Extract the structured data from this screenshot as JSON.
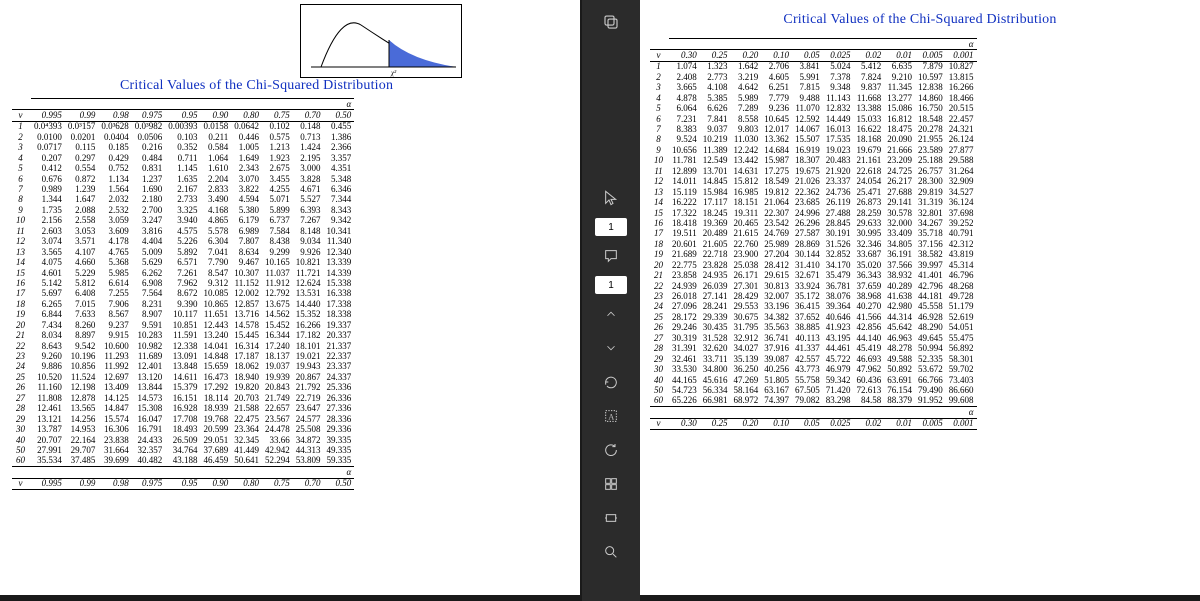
{
  "title": "Critical Values of the Chi-Squared Distribution",
  "alpha_symbol": "α",
  "v_symbol": "v",
  "left": {
    "headers": [
      "0.995",
      "0.99",
      "0.98",
      "0.975",
      "0.95",
      "0.90",
      "0.80",
      "0.75",
      "0.70",
      "0.50"
    ],
    "rows": [
      {
        "v": "1",
        "c": [
          "0.0⁴393",
          "0.0³157",
          "0.0³628",
          "0.0³982",
          "0.00393",
          "0.0158",
          "0.0642",
          "0.102",
          "0.148",
          "0.455"
        ]
      },
      {
        "v": "2",
        "c": [
          "0.0100",
          "0.0201",
          "0.0404",
          "0.0506",
          "0.103",
          "0.211",
          "0.446",
          "0.575",
          "0.713",
          "1.386"
        ]
      },
      {
        "v": "3",
        "c": [
          "0.0717",
          "0.115",
          "0.185",
          "0.216",
          "0.352",
          "0.584",
          "1.005",
          "1.213",
          "1.424",
          "2.366"
        ]
      },
      {
        "v": "4",
        "c": [
          "0.207",
          "0.297",
          "0.429",
          "0.484",
          "0.711",
          "1.064",
          "1.649",
          "1.923",
          "2.195",
          "3.357"
        ]
      },
      {
        "v": "5",
        "c": [
          "0.412",
          "0.554",
          "0.752",
          "0.831",
          "1.145",
          "1.610",
          "2.343",
          "2.675",
          "3.000",
          "4.351"
        ]
      },
      {
        "v": "6",
        "c": [
          "0.676",
          "0.872",
          "1.134",
          "1.237",
          "1.635",
          "2.204",
          "3.070",
          "3.455",
          "3.828",
          "5.348"
        ]
      },
      {
        "v": "7",
        "c": [
          "0.989",
          "1.239",
          "1.564",
          "1.690",
          "2.167",
          "2.833",
          "3.822",
          "4.255",
          "4.671",
          "6.346"
        ]
      },
      {
        "v": "8",
        "c": [
          "1.344",
          "1.647",
          "2.032",
          "2.180",
          "2.733",
          "3.490",
          "4.594",
          "5.071",
          "5.527",
          "7.344"
        ]
      },
      {
        "v": "9",
        "c": [
          "1.735",
          "2.088",
          "2.532",
          "2.700",
          "3.325",
          "4.168",
          "5.380",
          "5.899",
          "6.393",
          "8.343"
        ]
      },
      {
        "v": "10",
        "c": [
          "2.156",
          "2.558",
          "3.059",
          "3.247",
          "3.940",
          "4.865",
          "6.179",
          "6.737",
          "7.267",
          "9.342"
        ]
      },
      {
        "v": "11",
        "c": [
          "2.603",
          "3.053",
          "3.609",
          "3.816",
          "4.575",
          "5.578",
          "6.989",
          "7.584",
          "8.148",
          "10.341"
        ]
      },
      {
        "v": "12",
        "c": [
          "3.074",
          "3.571",
          "4.178",
          "4.404",
          "5.226",
          "6.304",
          "7.807",
          "8.438",
          "9.034",
          "11.340"
        ]
      },
      {
        "v": "13",
        "c": [
          "3.565",
          "4.107",
          "4.765",
          "5.009",
          "5.892",
          "7.041",
          "8.634",
          "9.299",
          "9.926",
          "12.340"
        ]
      },
      {
        "v": "14",
        "c": [
          "4.075",
          "4.660",
          "5.368",
          "5.629",
          "6.571",
          "7.790",
          "9.467",
          "10.165",
          "10.821",
          "13.339"
        ]
      },
      {
        "v": "15",
        "c": [
          "4.601",
          "5.229",
          "5.985",
          "6.262",
          "7.261",
          "8.547",
          "10.307",
          "11.037",
          "11.721",
          "14.339"
        ]
      },
      {
        "v": "16",
        "c": [
          "5.142",
          "5.812",
          "6.614",
          "6.908",
          "7.962",
          "9.312",
          "11.152",
          "11.912",
          "12.624",
          "15.338"
        ]
      },
      {
        "v": "17",
        "c": [
          "5.697",
          "6.408",
          "7.255",
          "7.564",
          "8.672",
          "10.085",
          "12.002",
          "12.792",
          "13.531",
          "16.338"
        ]
      },
      {
        "v": "18",
        "c": [
          "6.265",
          "7.015",
          "7.906",
          "8.231",
          "9.390",
          "10.865",
          "12.857",
          "13.675",
          "14.440",
          "17.338"
        ]
      },
      {
        "v": "19",
        "c": [
          "6.844",
          "7.633",
          "8.567",
          "8.907",
          "10.117",
          "11.651",
          "13.716",
          "14.562",
          "15.352",
          "18.338"
        ]
      },
      {
        "v": "20",
        "c": [
          "7.434",
          "8.260",
          "9.237",
          "9.591",
          "10.851",
          "12.443",
          "14.578",
          "15.452",
          "16.266",
          "19.337"
        ]
      },
      {
        "v": "21",
        "c": [
          "8.034",
          "8.897",
          "9.915",
          "10.283",
          "11.591",
          "13.240",
          "15.445",
          "16.344",
          "17.182",
          "20.337"
        ]
      },
      {
        "v": "22",
        "c": [
          "8.643",
          "9.542",
          "10.600",
          "10.982",
          "12.338",
          "14.041",
          "16.314",
          "17.240",
          "18.101",
          "21.337"
        ]
      },
      {
        "v": "23",
        "c": [
          "9.260",
          "10.196",
          "11.293",
          "11.689",
          "13.091",
          "14.848",
          "17.187",
          "18.137",
          "19.021",
          "22.337"
        ]
      },
      {
        "v": "24",
        "c": [
          "9.886",
          "10.856",
          "11.992",
          "12.401",
          "13.848",
          "15.659",
          "18.062",
          "19.037",
          "19.943",
          "23.337"
        ]
      },
      {
        "v": "25",
        "c": [
          "10.520",
          "11.524",
          "12.697",
          "13.120",
          "14.611",
          "16.473",
          "18.940",
          "19.939",
          "20.867",
          "24.337"
        ]
      },
      {
        "v": "26",
        "c": [
          "11.160",
          "12.198",
          "13.409",
          "13.844",
          "15.379",
          "17.292",
          "19.820",
          "20.843",
          "21.792",
          "25.336"
        ]
      },
      {
        "v": "27",
        "c": [
          "11.808",
          "12.878",
          "14.125",
          "14.573",
          "16.151",
          "18.114",
          "20.703",
          "21.749",
          "22.719",
          "26.336"
        ]
      },
      {
        "v": "28",
        "c": [
          "12.461",
          "13.565",
          "14.847",
          "15.308",
          "16.928",
          "18.939",
          "21.588",
          "22.657",
          "23.647",
          "27.336"
        ]
      },
      {
        "v": "29",
        "c": [
          "13.121",
          "14.256",
          "15.574",
          "16.047",
          "17.708",
          "19.768",
          "22.475",
          "23.567",
          "24.577",
          "28.336"
        ]
      },
      {
        "v": "30",
        "c": [
          "13.787",
          "14.953",
          "16.306",
          "16.791",
          "18.493",
          "20.599",
          "23.364",
          "24.478",
          "25.508",
          "29.336"
        ]
      },
      {
        "v": "40",
        "c": [
          "20.707",
          "22.164",
          "23.838",
          "24.433",
          "26.509",
          "29.051",
          "32.345",
          "33.66",
          "34.872",
          "39.335"
        ]
      },
      {
        "v": "50",
        "c": [
          "27.991",
          "29.707",
          "31.664",
          "32.357",
          "34.764",
          "37.689",
          "41.449",
          "42.942",
          "44.313",
          "49.335"
        ]
      },
      {
        "v": "60",
        "c": [
          "35.534",
          "37.485",
          "39.699",
          "40.482",
          "43.188",
          "46.459",
          "50.641",
          "52.294",
          "53.809",
          "59.335"
        ]
      }
    ]
  },
  "right": {
    "headers": [
      "0.30",
      "0.25",
      "0.20",
      "0.10",
      "0.05",
      "0.025",
      "0.02",
      "0.01",
      "0.005",
      "0.001"
    ],
    "rows": [
      {
        "v": "1",
        "c": [
          "1.074",
          "1.323",
          "1.642",
          "2.706",
          "3.841",
          "5.024",
          "5.412",
          "6.635",
          "7.879",
          "10.827"
        ]
      },
      {
        "v": "2",
        "c": [
          "2.408",
          "2.773",
          "3.219",
          "4.605",
          "5.991",
          "7.378",
          "7.824",
          "9.210",
          "10.597",
          "13.815"
        ]
      },
      {
        "v": "3",
        "c": [
          "3.665",
          "4.108",
          "4.642",
          "6.251",
          "7.815",
          "9.348",
          "9.837",
          "11.345",
          "12.838",
          "16.266"
        ]
      },
      {
        "v": "4",
        "c": [
          "4.878",
          "5.385",
          "5.989",
          "7.779",
          "9.488",
          "11.143",
          "11.668",
          "13.277",
          "14.860",
          "18.466"
        ]
      },
      {
        "v": "5",
        "c": [
          "6.064",
          "6.626",
          "7.289",
          "9.236",
          "11.070",
          "12.832",
          "13.388",
          "15.086",
          "16.750",
          "20.515"
        ]
      },
      {
        "v": "6",
        "c": [
          "7.231",
          "7.841",
          "8.558",
          "10.645",
          "12.592",
          "14.449",
          "15.033",
          "16.812",
          "18.548",
          "22.457"
        ]
      },
      {
        "v": "7",
        "c": [
          "8.383",
          "9.037",
          "9.803",
          "12.017",
          "14.067",
          "16.013",
          "16.622",
          "18.475",
          "20.278",
          "24.321"
        ]
      },
      {
        "v": "8",
        "c": [
          "9.524",
          "10.219",
          "11.030",
          "13.362",
          "15.507",
          "17.535",
          "18.168",
          "20.090",
          "21.955",
          "26.124"
        ]
      },
      {
        "v": "9",
        "c": [
          "10.656",
          "11.389",
          "12.242",
          "14.684",
          "16.919",
          "19.023",
          "19.679",
          "21.666",
          "23.589",
          "27.877"
        ]
      },
      {
        "v": "10",
        "c": [
          "11.781",
          "12.549",
          "13.442",
          "15.987",
          "18.307",
          "20.483",
          "21.161",
          "23.209",
          "25.188",
          "29.588"
        ]
      },
      {
        "v": "11",
        "c": [
          "12.899",
          "13.701",
          "14.631",
          "17.275",
          "19.675",
          "21.920",
          "22.618",
          "24.725",
          "26.757",
          "31.264"
        ]
      },
      {
        "v": "12",
        "c": [
          "14.011",
          "14.845",
          "15.812",
          "18.549",
          "21.026",
          "23.337",
          "24.054",
          "26.217",
          "28.300",
          "32.909"
        ]
      },
      {
        "v": "13",
        "c": [
          "15.119",
          "15.984",
          "16.985",
          "19.812",
          "22.362",
          "24.736",
          "25.471",
          "27.688",
          "29.819",
          "34.527"
        ]
      },
      {
        "v": "14",
        "c": [
          "16.222",
          "17.117",
          "18.151",
          "21.064",
          "23.685",
          "26.119",
          "26.873",
          "29.141",
          "31.319",
          "36.124"
        ]
      },
      {
        "v": "15",
        "c": [
          "17.322",
          "18.245",
          "19.311",
          "22.307",
          "24.996",
          "27.488",
          "28.259",
          "30.578",
          "32.801",
          "37.698"
        ]
      },
      {
        "v": "16",
        "c": [
          "18.418",
          "19.369",
          "20.465",
          "23.542",
          "26.296",
          "28.845",
          "29.633",
          "32.000",
          "34.267",
          "39.252"
        ]
      },
      {
        "v": "17",
        "c": [
          "19.511",
          "20.489",
          "21.615",
          "24.769",
          "27.587",
          "30.191",
          "30.995",
          "33.409",
          "35.718",
          "40.791"
        ]
      },
      {
        "v": "18",
        "c": [
          "20.601",
          "21.605",
          "22.760",
          "25.989",
          "28.869",
          "31.526",
          "32.346",
          "34.805",
          "37.156",
          "42.312"
        ]
      },
      {
        "v": "19",
        "c": [
          "21.689",
          "22.718",
          "23.900",
          "27.204",
          "30.144",
          "32.852",
          "33.687",
          "36.191",
          "38.582",
          "43.819"
        ]
      },
      {
        "v": "20",
        "c": [
          "22.775",
          "23.828",
          "25.038",
          "28.412",
          "31.410",
          "34.170",
          "35.020",
          "37.566",
          "39.997",
          "45.314"
        ]
      },
      {
        "v": "21",
        "c": [
          "23.858",
          "24.935",
          "26.171",
          "29.615",
          "32.671",
          "35.479",
          "36.343",
          "38.932",
          "41.401",
          "46.796"
        ]
      },
      {
        "v": "22",
        "c": [
          "24.939",
          "26.039",
          "27.301",
          "30.813",
          "33.924",
          "36.781",
          "37.659",
          "40.289",
          "42.796",
          "48.268"
        ]
      },
      {
        "v": "23",
        "c": [
          "26.018",
          "27.141",
          "28.429",
          "32.007",
          "35.172",
          "38.076",
          "38.968",
          "41.638",
          "44.181",
          "49.728"
        ]
      },
      {
        "v": "24",
        "c": [
          "27.096",
          "28.241",
          "29.553",
          "33.196",
          "36.415",
          "39.364",
          "40.270",
          "42.980",
          "45.558",
          "51.179"
        ]
      },
      {
        "v": "25",
        "c": [
          "28.172",
          "29.339",
          "30.675",
          "34.382",
          "37.652",
          "40.646",
          "41.566",
          "44.314",
          "46.928",
          "52.619"
        ]
      },
      {
        "v": "26",
        "c": [
          "29.246",
          "30.435",
          "31.795",
          "35.563",
          "38.885",
          "41.923",
          "42.856",
          "45.642",
          "48.290",
          "54.051"
        ]
      },
      {
        "v": "27",
        "c": [
          "30.319",
          "31.528",
          "32.912",
          "36.741",
          "40.113",
          "43.195",
          "44.140",
          "46.963",
          "49.645",
          "55.475"
        ]
      },
      {
        "v": "28",
        "c": [
          "31.391",
          "32.620",
          "34.027",
          "37.916",
          "41.337",
          "44.461",
          "45.419",
          "48.278",
          "50.994",
          "56.892"
        ]
      },
      {
        "v": "29",
        "c": [
          "32.461",
          "33.711",
          "35.139",
          "39.087",
          "42.557",
          "45.722",
          "46.693",
          "49.588",
          "52.335",
          "58.301"
        ]
      },
      {
        "v": "30",
        "c": [
          "33.530",
          "34.800",
          "36.250",
          "40.256",
          "43.773",
          "46.979",
          "47.962",
          "50.892",
          "53.672",
          "59.702"
        ]
      },
      {
        "v": "40",
        "c": [
          "44.165",
          "45.616",
          "47.269",
          "51.805",
          "55.758",
          "59.342",
          "60.436",
          "63.691",
          "66.766",
          "73.403"
        ]
      },
      {
        "v": "50",
        "c": [
          "54.723",
          "56.334",
          "58.164",
          "63.167",
          "67.505",
          "71.420",
          "72.613",
          "76.154",
          "79.490",
          "86.660"
        ]
      },
      {
        "v": "60",
        "c": [
          "65.226",
          "66.981",
          "68.972",
          "74.397",
          "79.082",
          "83.298",
          "84.58",
          "88.379",
          "91.952",
          "99.608"
        ]
      }
    ]
  },
  "toolbar": {
    "badges": [
      "1",
      "1"
    ]
  },
  "colors": {
    "title": "#1030c0",
    "curve_fill": "#4a6bd8",
    "bg": "#ffffff",
    "dark": "#1a1a1a",
    "toolbar": "#2b2b2b"
  }
}
